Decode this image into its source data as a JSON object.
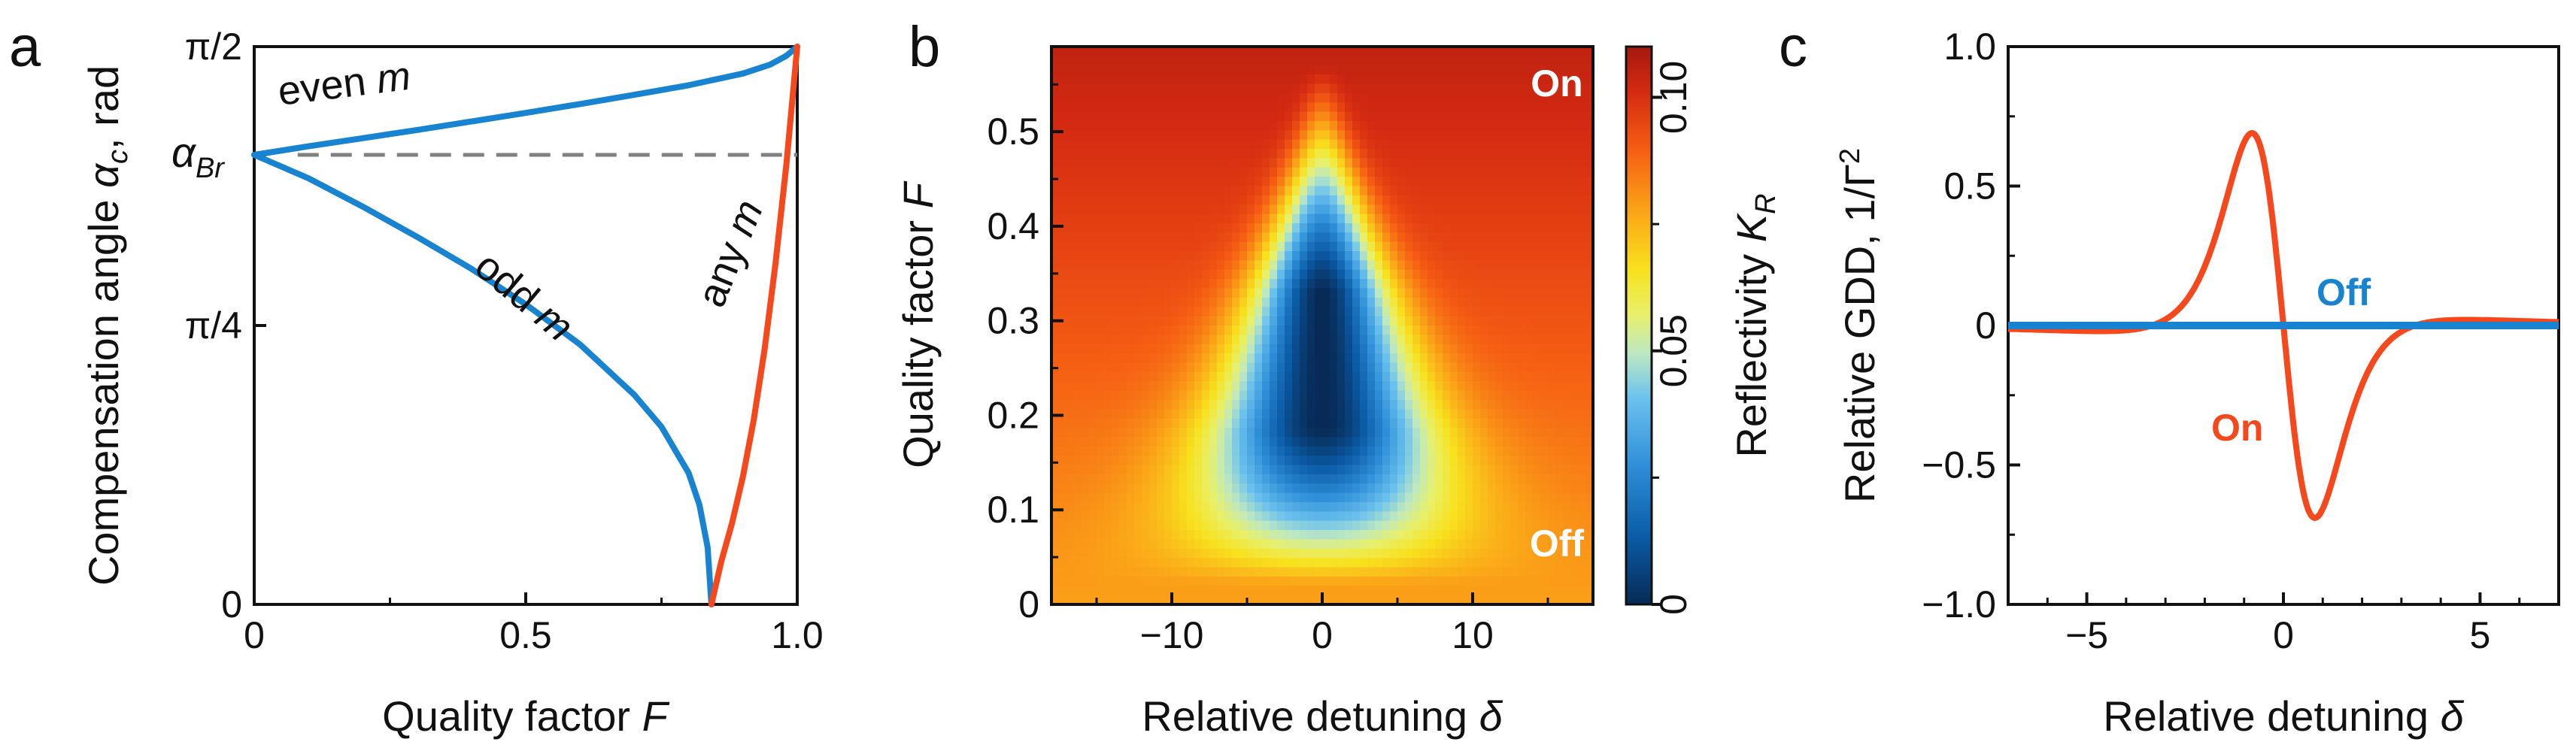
{
  "chart_data": [
    {
      "panel": "a",
      "type": "line",
      "xlabel": "Quality factor",
      "xlabel_var": "F",
      "ylabel_main": "Compensation angle",
      "ylabel_var": "α",
      "ylabel_sub": "c",
      "ylabel_unit": ", rad",
      "xlim": [
        0,
        1
      ],
      "ylim": [
        0,
        1.5708
      ],
      "xticks": [
        {
          "v": 0,
          "label": "0"
        },
        {
          "v": 0.5,
          "label": "0.5"
        },
        {
          "v": 1,
          "label": "1.0"
        }
      ],
      "yticks": [
        {
          "v": 0,
          "label": "0"
        },
        {
          "v": 0.7854,
          "label": "π/4"
        },
        {
          "v": 1.5708,
          "label": "π/2"
        }
      ],
      "brewster": {
        "value": 1.266,
        "label": "α",
        "sub": "Br"
      },
      "series": [
        {
          "name": "even m",
          "color": "#1883d0",
          "x": [
            0,
            0.1,
            0.2,
            0.3,
            0.4,
            0.5,
            0.6,
            0.7,
            0.8,
            0.9,
            0.95,
            0.98,
            1.0
          ],
          "y": [
            1.266,
            1.29,
            1.313,
            1.336,
            1.36,
            1.384,
            1.409,
            1.435,
            1.462,
            1.495,
            1.52,
            1.545,
            1.5708
          ]
        },
        {
          "name": "odd m",
          "color": "#1883d0",
          "x": [
            0,
            0.1,
            0.2,
            0.3,
            0.4,
            0.5,
            0.6,
            0.7,
            0.75,
            0.8,
            0.82,
            0.835,
            0.842
          ],
          "y": [
            1.266,
            1.2,
            1.12,
            1.035,
            0.945,
            0.845,
            0.732,
            0.59,
            0.5,
            0.37,
            0.28,
            0.16,
            0.0
          ]
        },
        {
          "name": "any m",
          "color": "#f5481d",
          "x": [
            0.842,
            0.86,
            0.88,
            0.9,
            0.92,
            0.94,
            0.96,
            0.98,
            1.0
          ],
          "y": [
            0.0,
            0.12,
            0.23,
            0.36,
            0.52,
            0.72,
            0.96,
            1.24,
            1.5708
          ]
        }
      ],
      "annotations": [
        {
          "text": "even",
          "var": "m"
        },
        {
          "text": "odd",
          "var": "m"
        },
        {
          "text": "any",
          "var": "m"
        }
      ]
    },
    {
      "panel": "b",
      "type": "heatmap",
      "xlabel": "Relative detuning",
      "xlabel_var": "δ",
      "ylabel": "Quality factor",
      "ylabel_var": "F",
      "xlim": [
        -18,
        18
      ],
      "ylim": [
        0,
        0.59
      ],
      "xticks": [
        {
          "v": -10,
          "label": "−10"
        },
        {
          "v": 0,
          "label": "0"
        },
        {
          "v": 10,
          "label": "10"
        }
      ],
      "yticks": [
        {
          "v": 0,
          "label": "0"
        },
        {
          "v": 0.1,
          "label": "0.1"
        },
        {
          "v": 0.2,
          "label": "0.2"
        },
        {
          "v": 0.3,
          "label": "0.3"
        },
        {
          "v": 0.4,
          "label": "0.4"
        },
        {
          "v": 0.5,
          "label": "0.5"
        }
      ],
      "colorbar": {
        "label": "Reflectivity",
        "label_var": "K",
        "label_sub": "R",
        "range": [
          0,
          0.11
        ],
        "ticks": [
          {
            "v": 0,
            "label": "0"
          },
          {
            "v": 0.05,
            "label": "0.05"
          },
          {
            "v": 0.1,
            "label": "0.10"
          }
        ]
      },
      "labels": {
        "top": "On",
        "bottom": "Off"
      }
    },
    {
      "panel": "c",
      "type": "line",
      "xlabel": "Relative detuning",
      "xlabel_var": "δ",
      "ylabel": "Relative GDD, 1/Γ",
      "ylabel_sup": "2",
      "xlim": [
        -7,
        7
      ],
      "ylim": [
        -1.0,
        1.0
      ],
      "xticks": [
        {
          "v": -5,
          "label": "−5"
        },
        {
          "v": 0,
          "label": "0"
        },
        {
          "v": 5,
          "label": "5"
        }
      ],
      "yticks": [
        {
          "v": -1,
          "label": "−1.0"
        },
        {
          "v": -0.5,
          "label": "−0.5"
        },
        {
          "v": 0,
          "label": "0"
        },
        {
          "v": 0.5,
          "label": "0.5"
        },
        {
          "v": 1,
          "label": "1.0"
        }
      ],
      "series": [
        {
          "name": "On",
          "color": "#f5481d",
          "formula": "gdd",
          "peak": 0.69,
          "peak_x": -0.8
        },
        {
          "name": "Off",
          "color": "#1883d0",
          "x": [
            -7,
            7
          ],
          "y": [
            0,
            0
          ]
        }
      ]
    }
  ],
  "panel_letters": {
    "a": "a",
    "b": "b",
    "c": "c"
  },
  "colors": {
    "blue": "#1883d0",
    "orange": "#f5481d",
    "dash": "#808080"
  }
}
